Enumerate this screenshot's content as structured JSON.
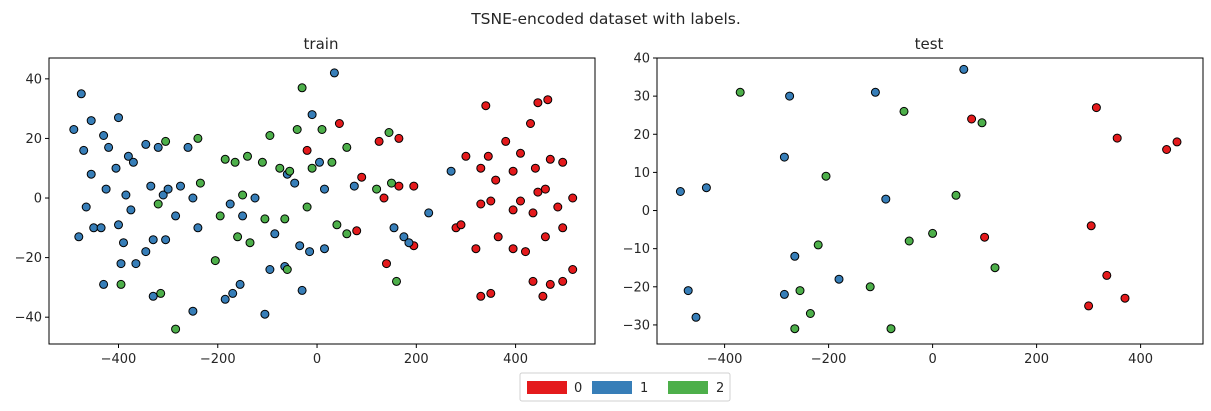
{
  "figure": {
    "suptitle": "TSNE-encoded dataset with labels."
  },
  "legend": {
    "placement": "bottom-center",
    "entries": [
      {
        "label": "0",
        "color": "#e41a1c"
      },
      {
        "label": "1",
        "color": "#377eb8"
      },
      {
        "label": "2",
        "color": "#4daf4a"
      }
    ]
  },
  "chart_data": [
    {
      "type": "scatter",
      "title": "train",
      "xlabel": "",
      "ylabel": "",
      "xlim": [
        -540,
        560
      ],
      "ylim": [
        -49,
        47
      ],
      "xticks": [
        -400,
        -200,
        0,
        200,
        400
      ],
      "yticks": [
        -40,
        -20,
        0,
        20,
        40
      ],
      "grid": false,
      "series": [
        {
          "name": "0",
          "color": "#e41a1c",
          "points": [
            [
              340,
              31
            ],
            [
              465,
              33
            ],
            [
              445,
              32
            ],
            [
              430,
              25
            ],
            [
              380,
              19
            ],
            [
              410,
              15
            ],
            [
              300,
              14
            ],
            [
              345,
              14
            ],
            [
              470,
              13
            ],
            [
              495,
              12
            ],
            [
              330,
              10
            ],
            [
              440,
              10
            ],
            [
              395,
              9
            ],
            [
              360,
              6
            ],
            [
              460,
              3
            ],
            [
              445,
              2
            ],
            [
              515,
              0
            ],
            [
              350,
              -1
            ],
            [
              410,
              -1
            ],
            [
              330,
              -2
            ],
            [
              395,
              -4
            ],
            [
              485,
              -3
            ],
            [
              435,
              -5
            ],
            [
              280,
              -10
            ],
            [
              290,
              -9
            ],
            [
              320,
              -17
            ],
            [
              395,
              -17
            ],
            [
              365,
              -13
            ],
            [
              420,
              -18
            ],
            [
              460,
              -13
            ],
            [
              495,
              -10
            ],
            [
              515,
              -24
            ],
            [
              435,
              -28
            ],
            [
              470,
              -29
            ],
            [
              495,
              -28
            ],
            [
              455,
              -33
            ],
            [
              330,
              -33
            ],
            [
              350,
              -32
            ],
            [
              45,
              25
            ],
            [
              -20,
              16
            ],
            [
              125,
              19
            ],
            [
              165,
              20
            ],
            [
              165,
              4
            ],
            [
              195,
              4
            ],
            [
              90,
              7
            ],
            [
              135,
              0
            ],
            [
              80,
              -11
            ],
            [
              195,
              -16
            ],
            [
              140,
              -22
            ]
          ]
        },
        {
          "name": "1",
          "color": "#377eb8",
          "points": [
            [
              -475,
              35
            ],
            [
              -490,
              23
            ],
            [
              -455,
              26
            ],
            [
              -400,
              27
            ],
            [
              -430,
              21
            ],
            [
              -470,
              16
            ],
            [
              -455,
              8
            ],
            [
              -420,
              17
            ],
            [
              -380,
              14
            ],
            [
              -405,
              10
            ],
            [
              -370,
              12
            ],
            [
              -385,
              1
            ],
            [
              -425,
              3
            ],
            [
              -465,
              -3
            ],
            [
              -450,
              -10
            ],
            [
              -435,
              -10
            ],
            [
              -400,
              -9
            ],
            [
              -375,
              -4
            ],
            [
              -345,
              18
            ],
            [
              -320,
              17
            ],
            [
              -335,
              4
            ],
            [
              -310,
              1
            ],
            [
              -300,
              3
            ],
            [
              -275,
              4
            ],
            [
              -285,
              -6
            ],
            [
              -260,
              17
            ],
            [
              -250,
              0
            ],
            [
              -240,
              -10
            ],
            [
              -305,
              -14
            ],
            [
              -330,
              -14
            ],
            [
              -345,
              -18
            ],
            [
              -365,
              -22
            ],
            [
              -395,
              -22
            ],
            [
              -480,
              -13
            ],
            [
              -390,
              -15
            ],
            [
              -430,
              -29
            ],
            [
              -330,
              -33
            ],
            [
              -250,
              -38
            ],
            [
              -185,
              -34
            ],
            [
              -170,
              -32
            ],
            [
              -155,
              -29
            ],
            [
              -105,
              -39
            ],
            [
              -95,
              -24
            ],
            [
              -85,
              -12
            ],
            [
              -150,
              -6
            ],
            [
              -175,
              -2
            ],
            [
              -125,
              0
            ],
            [
              -60,
              8
            ],
            [
              -45,
              5
            ],
            [
              -65,
              -23
            ],
            [
              -35,
              -16
            ],
            [
              -15,
              -18
            ],
            [
              15,
              -17
            ],
            [
              15,
              3
            ],
            [
              -10,
              28
            ],
            [
              35,
              42
            ],
            [
              75,
              4
            ],
            [
              225,
              -5
            ],
            [
              155,
              -10
            ],
            [
              175,
              -13
            ],
            [
              185,
              -15
            ],
            [
              -30,
              -31
            ],
            [
              270,
              9
            ],
            [
              5,
              12
            ]
          ]
        },
        {
          "name": "2",
          "color": "#4daf4a",
          "points": [
            [
              -305,
              19
            ],
            [
              -240,
              20
            ],
            [
              -95,
              21
            ],
            [
              -30,
              37
            ],
            [
              -40,
              23
            ],
            [
              10,
              23
            ],
            [
              60,
              17
            ],
            [
              30,
              12
            ],
            [
              -185,
              13
            ],
            [
              -165,
              12
            ],
            [
              -140,
              14
            ],
            [
              -110,
              12
            ],
            [
              -75,
              10
            ],
            [
              -55,
              9
            ],
            [
              -10,
              10
            ],
            [
              -235,
              5
            ],
            [
              -150,
              1
            ],
            [
              -320,
              -2
            ],
            [
              -195,
              -6
            ],
            [
              -105,
              -7
            ],
            [
              -65,
              -7
            ],
            [
              -20,
              -3
            ],
            [
              40,
              -9
            ],
            [
              60,
              -12
            ],
            [
              -160,
              -13
            ],
            [
              -135,
              -15
            ],
            [
              -205,
              -21
            ],
            [
              -60,
              -24
            ],
            [
              -395,
              -29
            ],
            [
              -315,
              -32
            ],
            [
              -285,
              -44
            ],
            [
              120,
              3
            ],
            [
              145,
              22
            ],
            [
              150,
              5
            ],
            [
              160,
              -28
            ]
          ]
        }
      ]
    },
    {
      "type": "scatter",
      "title": "test",
      "xlabel": "",
      "ylabel": "",
      "xlim": [
        -530,
        520
      ],
      "ylim": [
        -35,
        40
      ],
      "xticks": [
        -400,
        -200,
        0,
        200,
        400
      ],
      "yticks": [
        -30,
        -20,
        -10,
        0,
        10,
        20,
        30,
        40
      ],
      "grid": false,
      "series": [
        {
          "name": "0",
          "color": "#e41a1c",
          "points": [
            [
              75,
              24
            ],
            [
              315,
              27
            ],
            [
              355,
              19
            ],
            [
              450,
              16
            ],
            [
              470,
              18
            ],
            [
              305,
              -4
            ],
            [
              100,
              -7
            ],
            [
              335,
              -17
            ],
            [
              370,
              -23
            ],
            [
              300,
              -25
            ]
          ]
        },
        {
          "name": "1",
          "color": "#377eb8",
          "points": [
            [
              60,
              37
            ],
            [
              -275,
              30
            ],
            [
              -110,
              31
            ],
            [
              -285,
              14
            ],
            [
              -90,
              3
            ],
            [
              -485,
              5
            ],
            [
              -435,
              6
            ],
            [
              -265,
              -12
            ],
            [
              -180,
              -18
            ],
            [
              -470,
              -21
            ],
            [
              -285,
              -22
            ],
            [
              -455,
              -28
            ]
          ]
        },
        {
          "name": "2",
          "color": "#4daf4a",
          "points": [
            [
              -370,
              31
            ],
            [
              -55,
              26
            ],
            [
              95,
              23
            ],
            [
              -205,
              9
            ],
            [
              45,
              4
            ],
            [
              0,
              -6
            ],
            [
              -45,
              -8
            ],
            [
              -220,
              -9
            ],
            [
              120,
              -15
            ],
            [
              -120,
              -20
            ],
            [
              -255,
              -21
            ],
            [
              -235,
              -27
            ],
            [
              -265,
              -31
            ],
            [
              -80,
              -31
            ]
          ]
        }
      ]
    }
  ]
}
